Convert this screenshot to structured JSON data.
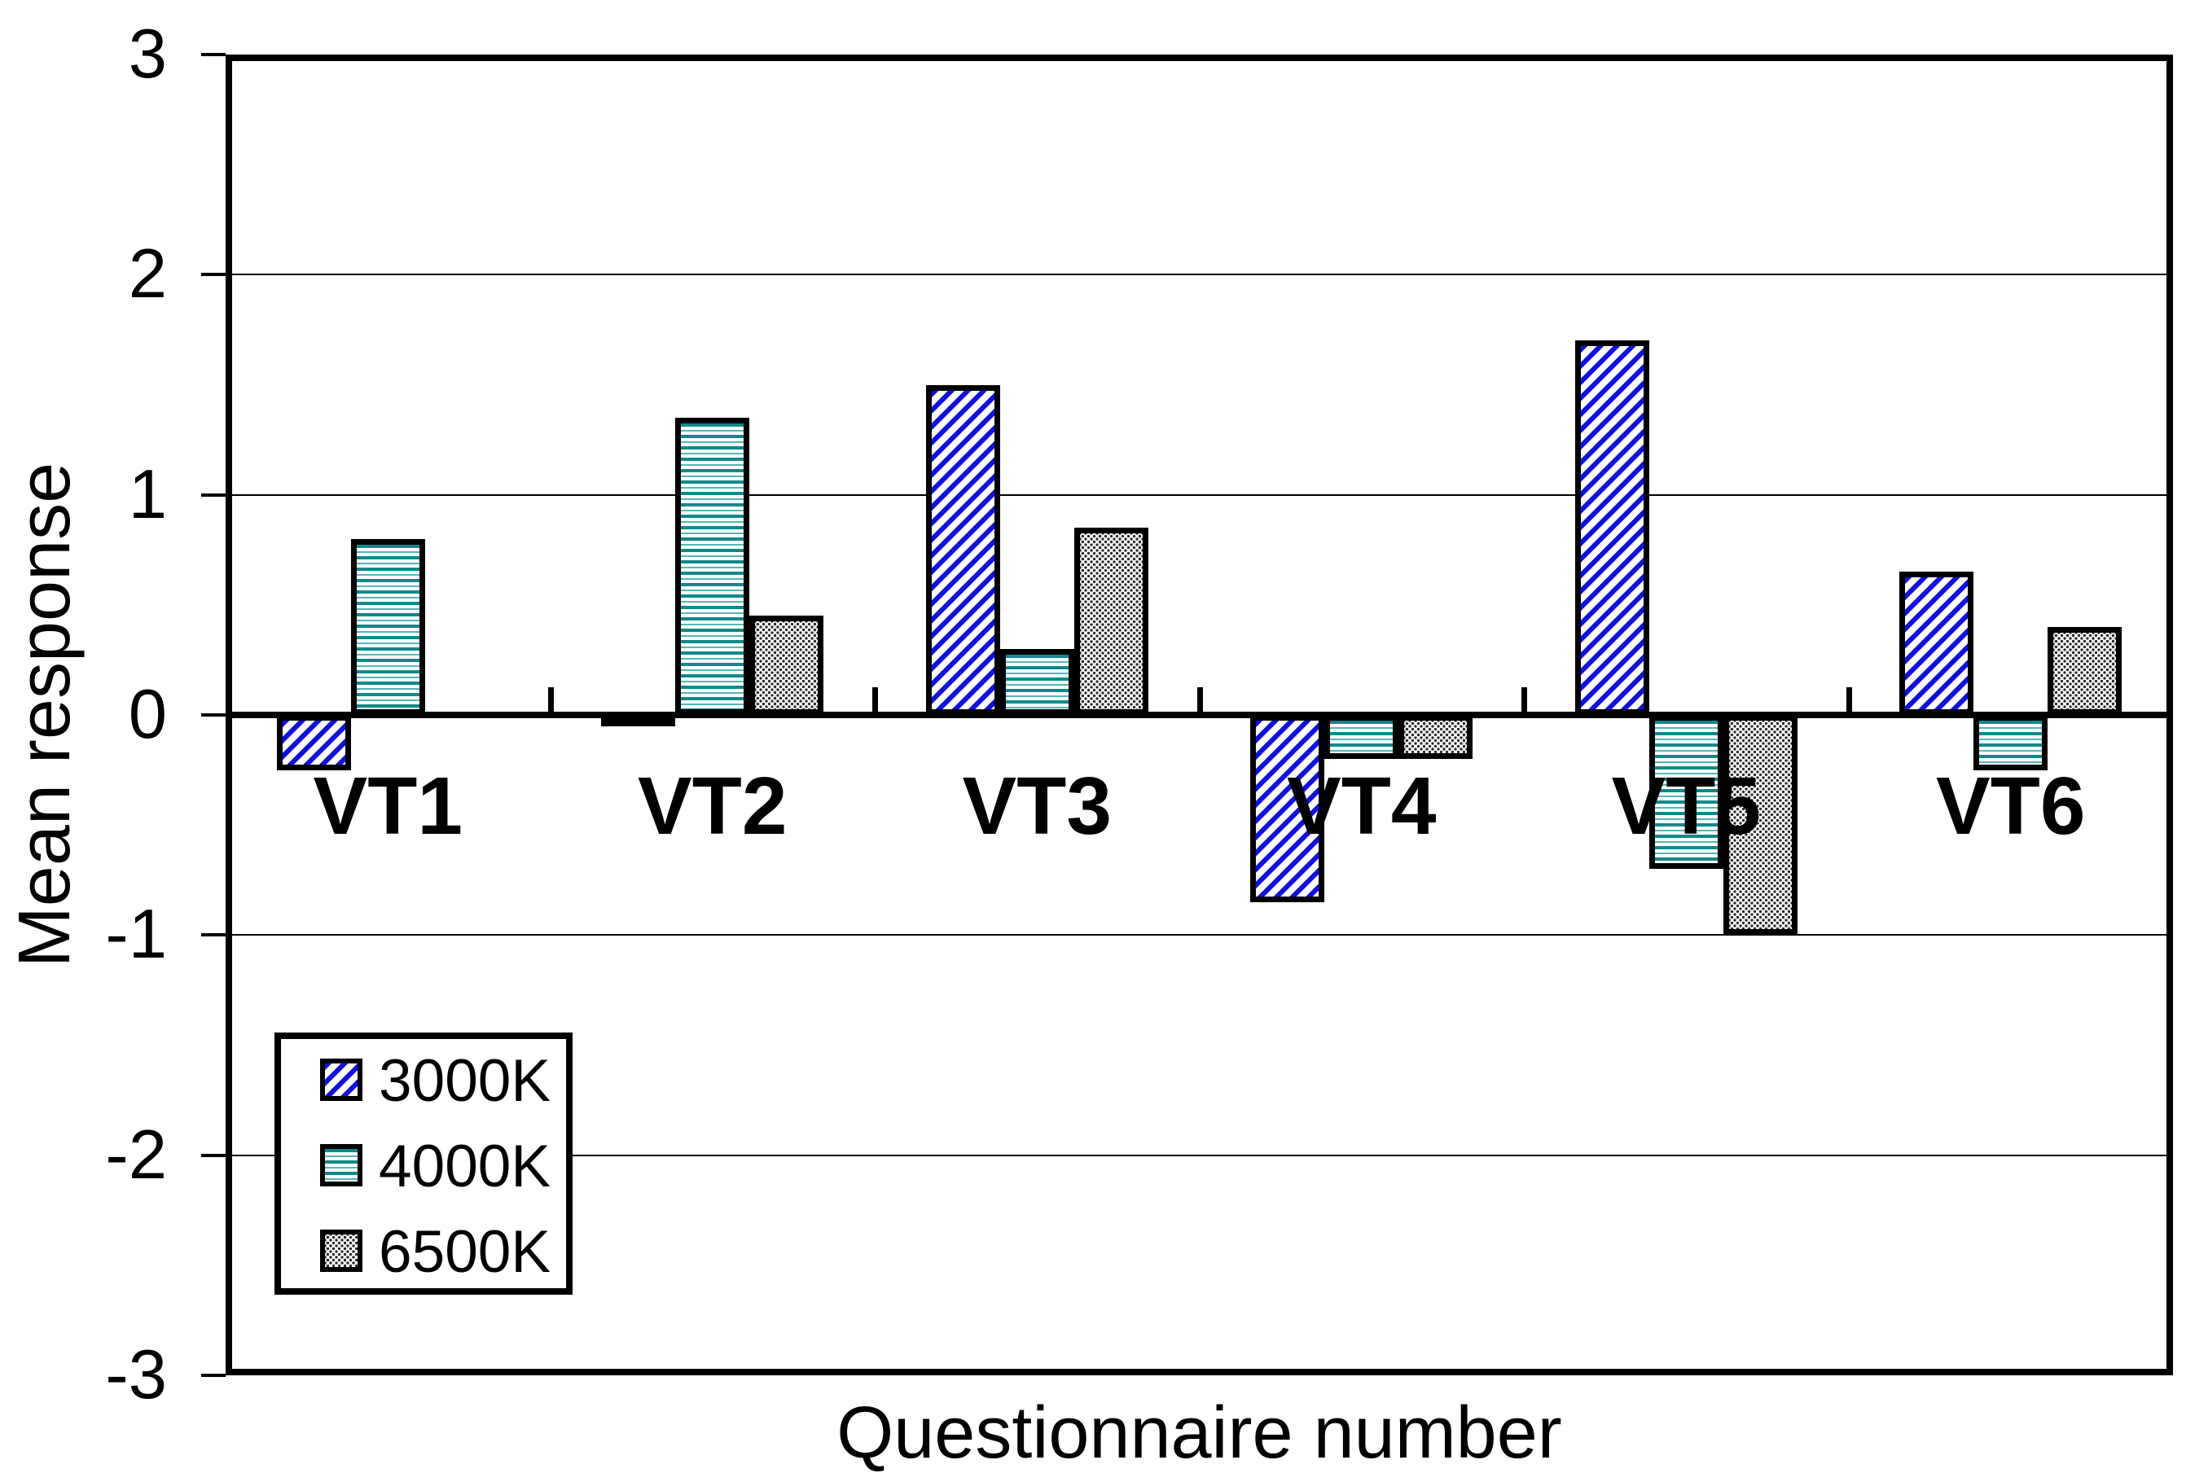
{
  "chart_data": {
    "type": "bar",
    "title": "",
    "xlabel": "Questionnaire number",
    "ylabel": "Mean response",
    "categories": [
      "VT1",
      "VT2",
      "VT3",
      "VT4",
      "VT5",
      "VT6"
    ],
    "series": [
      {
        "name": "3000K",
        "pattern": "blue-diagonal-hatch",
        "color": "#0f0fe8",
        "values": [
          -0.25,
          -0.05,
          1.5,
          -0.85,
          1.7,
          0.65
        ]
      },
      {
        "name": "4000K",
        "pattern": "teal-horizontal-stripes",
        "color": "#0d8a8a",
        "values": [
          0.8,
          1.35,
          0.3,
          -0.2,
          -0.7,
          -0.25
        ]
      },
      {
        "name": "6500K",
        "pattern": "gray-dot-screen",
        "color": "#c8c8c8",
        "values": [
          0,
          0.45,
          0.85,
          -0.2,
          -1.0,
          0.4
        ]
      }
    ],
    "ylim": [
      -3,
      3
    ],
    "y_ticks": [
      3,
      2,
      1,
      0,
      -1,
      -2,
      -3
    ],
    "grid": "horizontal-major",
    "legend_position": "inside-bottom-left",
    "bar_outline_color": "#000000",
    "background_color": "#ffffff"
  }
}
